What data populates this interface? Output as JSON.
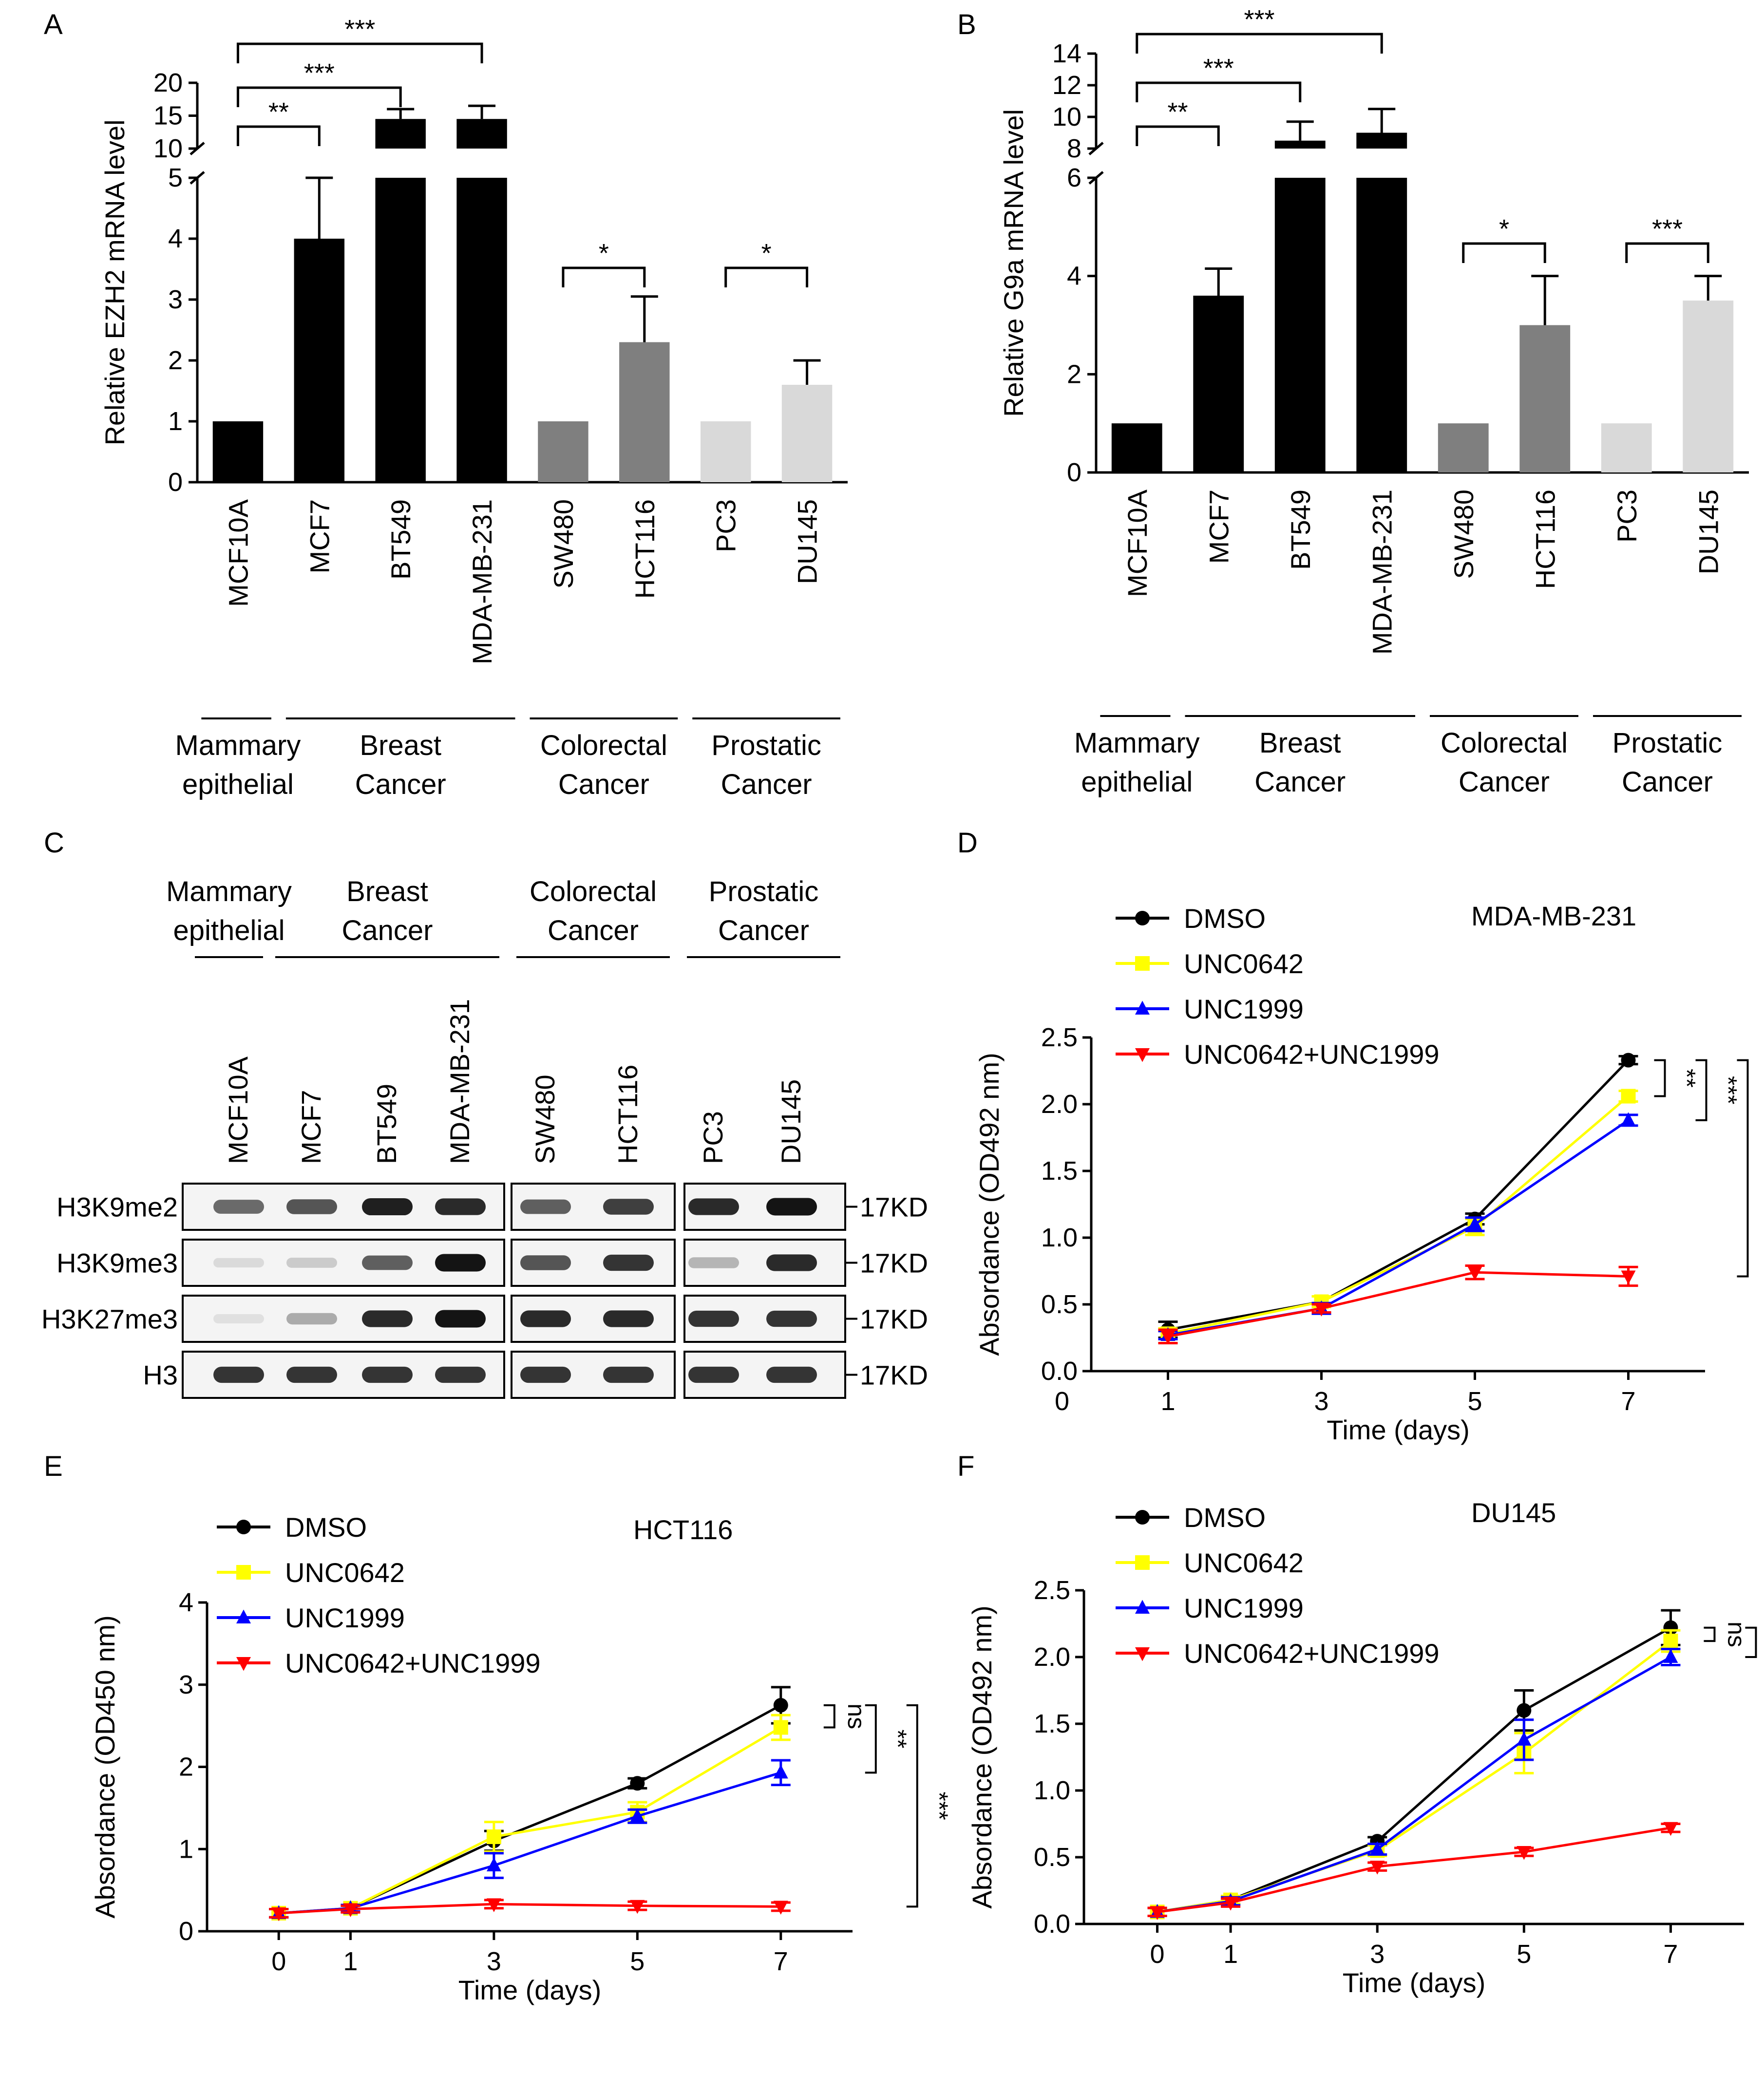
{
  "panel_letters": {
    "a": "A",
    "b": "B",
    "c": "C",
    "d": "D",
    "e": "E",
    "f": "F"
  },
  "colors": {
    "black": "#000000",
    "dark_gray": "#7f7f7f",
    "light_gray": "#d9d9d9",
    "dmso": "#000000",
    "unc0642": "#ffff00",
    "unc1999": "#0000ff",
    "combo": "#ff0000",
    "blot_bg": "#ffffff",
    "blot_band": "#1a1a1a"
  },
  "chart_data": [
    {
      "panel": "A",
      "type": "bar",
      "ylabel": "Relative EZH2 mRNA level",
      "axis_break": true,
      "lower_ticks": [
        "0",
        "1",
        "2",
        "3",
        "4",
        "5"
      ],
      "upper_ticks": [
        "10",
        "15",
        "20"
      ],
      "lower_ylim": [
        0,
        5
      ],
      "upper_ylim": [
        10,
        20
      ],
      "categories": [
        "MCF10A",
        "MCF7",
        "BT549",
        "MDA-MB-231",
        "SW480",
        "HCT116",
        "PC3",
        "DU145"
      ],
      "values": [
        1.0,
        4.0,
        14.5,
        14.5,
        1.0,
        2.3,
        1.0,
        1.6
      ],
      "errors": [
        0,
        1.0,
        1.5,
        2.0,
        0,
        0.75,
        0,
        0.4
      ],
      "bar_colors": [
        "black",
        "black",
        "black",
        "black",
        "dark_gray",
        "dark_gray",
        "light_gray",
        "light_gray"
      ],
      "groups": [
        {
          "line1": "Mammary",
          "line2": "epithelial",
          "from": 0,
          "to": 0
        },
        {
          "line1": "Breast",
          "line2": "Cancer",
          "from": 1,
          "to": 3
        },
        {
          "line1": "Colorectal",
          "line2": "Cancer",
          "from": 4,
          "to": 5
        },
        {
          "line1": "Prostatic",
          "line2": "Cancer",
          "from": 6,
          "to": 7
        }
      ],
      "significance": [
        {
          "from": 0,
          "to": 1,
          "label": "**"
        },
        {
          "from": 0,
          "to": 2,
          "label": "***"
        },
        {
          "from": 0,
          "to": 3,
          "label": "***"
        },
        {
          "from": 4,
          "to": 5,
          "label": "*"
        },
        {
          "from": 6,
          "to": 7,
          "label": "*"
        }
      ]
    },
    {
      "panel": "B",
      "type": "bar",
      "ylabel": "Relative G9a mRNA level",
      "axis_break": true,
      "lower_ticks": [
        "0",
        "2",
        "4",
        "6"
      ],
      "upper_ticks": [
        "8",
        "10",
        "12",
        "14"
      ],
      "lower_ylim": [
        0,
        6
      ],
      "upper_ylim": [
        8,
        14
      ],
      "categories": [
        "MCF10A",
        "MCF7",
        "BT549",
        "MDA-MB-231",
        "SW480",
        "HCT116",
        "PC3",
        "DU145"
      ],
      "values": [
        1.0,
        3.6,
        8.5,
        9.0,
        1.0,
        3.0,
        1.0,
        3.5
      ],
      "errors": [
        0,
        0.55,
        1.2,
        1.5,
        0,
        1.0,
        0,
        0.5
      ],
      "bar_colors": [
        "black",
        "black",
        "black",
        "black",
        "dark_gray",
        "dark_gray",
        "light_gray",
        "light_gray"
      ],
      "groups": [
        {
          "line1": "Mammary",
          "line2": "epithelial",
          "from": 0,
          "to": 0
        },
        {
          "line1": "Breast",
          "line2": "Cancer",
          "from": 1,
          "to": 3
        },
        {
          "line1": "Colorectal",
          "line2": "Cancer",
          "from": 4,
          "to": 5
        },
        {
          "line1": "Prostatic",
          "line2": "Cancer",
          "from": 6,
          "to": 7
        }
      ],
      "significance": [
        {
          "from": 0,
          "to": 1,
          "label": "**"
        },
        {
          "from": 0,
          "to": 2,
          "label": "***"
        },
        {
          "from": 0,
          "to": 3,
          "label": "***"
        },
        {
          "from": 4,
          "to": 5,
          "label": "*"
        },
        {
          "from": 6,
          "to": 7,
          "label": "***"
        }
      ]
    },
    {
      "panel": "D",
      "type": "line",
      "cell_line": "MDA-MB-231",
      "xlabel": "Time (days)",
      "ylabel": "Absordance (OD492 nm)",
      "x_ticks": [
        "0",
        "1",
        "3",
        "5",
        "7"
      ],
      "y_ticks": [
        "0.0",
        "0.5",
        "1.0",
        "1.5",
        "2.0",
        "2.5"
      ],
      "xlim": [
        0,
        8
      ],
      "ylim": [
        0,
        2.5
      ],
      "x": [
        1,
        3,
        5,
        7
      ],
      "series": [
        {
          "name": "DMSO",
          "color": "dmso",
          "marker": "circle",
          "values": [
            0.31,
            0.52,
            1.14,
            2.33
          ],
          "errors": [
            0.06,
            0.04,
            0.04,
            0.03
          ]
        },
        {
          "name": "UNC0642",
          "color": "unc0642",
          "marker": "square",
          "values": [
            0.28,
            0.52,
            1.08,
            2.06
          ],
          "errors": [
            0.04,
            0.04,
            0.06,
            0.04
          ]
        },
        {
          "name": "UNC1999",
          "color": "unc1999",
          "marker": "triangle-up",
          "values": [
            0.27,
            0.47,
            1.1,
            1.88
          ],
          "errors": [
            0.03,
            0.04,
            0.05,
            0.04
          ]
        },
        {
          "name": "UNC0642+UNC1999",
          "color": "combo",
          "marker": "triangle-down",
          "values": [
            0.26,
            0.47,
            0.74,
            0.71
          ],
          "errors": [
            0.05,
            0.03,
            0.05,
            0.07
          ]
        }
      ],
      "significance": [
        {
          "label": "**",
          "y_top": 2.33,
          "y_bottom": 2.06
        },
        {
          "label": "***",
          "y_top": 2.33,
          "y_bottom": 1.88
        },
        {
          "label": "***",
          "y_top": 2.33,
          "y_bottom": 0.71
        }
      ]
    },
    {
      "panel": "E",
      "type": "line",
      "cell_line": "HCT116",
      "xlabel": "Time (days)",
      "ylabel": "Absordance (OD450 nm)",
      "x_ticks": [
        "0",
        "1",
        "3",
        "5",
        "7"
      ],
      "y_ticks": [
        "0",
        "1",
        "2",
        "3",
        "4"
      ],
      "xlim": [
        -1,
        8
      ],
      "ylim": [
        0,
        4
      ],
      "x": [
        0,
        1,
        3,
        5,
        7
      ],
      "series": [
        {
          "name": "DMSO",
          "color": "dmso",
          "marker": "circle",
          "values": [
            0.22,
            0.28,
            1.1,
            1.8,
            2.75
          ],
          "errors": [
            0.05,
            0.04,
            0.12,
            0.06,
            0.22
          ]
        },
        {
          "name": "UNC0642",
          "color": "unc0642",
          "marker": "square",
          "values": [
            0.22,
            0.28,
            1.15,
            1.45,
            2.48
          ],
          "errors": [
            0.05,
            0.04,
            0.18,
            0.12,
            0.15
          ]
        },
        {
          "name": "UNC1999",
          "color": "unc1999",
          "marker": "triangle-up",
          "values": [
            0.22,
            0.28,
            0.8,
            1.4,
            1.93
          ],
          "errors": [
            0.05,
            0.04,
            0.15,
            0.08,
            0.15
          ]
        },
        {
          "name": "UNC0642+UNC1999",
          "color": "combo",
          "marker": "triangle-down",
          "values": [
            0.22,
            0.27,
            0.33,
            0.31,
            0.3
          ],
          "errors": [
            0.05,
            0.04,
            0.05,
            0.05,
            0.05
          ]
        }
      ],
      "significance": [
        {
          "label": "ns",
          "y_top": 2.75,
          "y_bottom": 2.48
        },
        {
          "label": "**",
          "y_top": 2.75,
          "y_bottom": 1.93
        },
        {
          "label": "***",
          "y_top": 2.75,
          "y_bottom": 0.3
        }
      ]
    },
    {
      "panel": "F",
      "type": "line",
      "cell_line": "DU145",
      "xlabel": "Time (days)",
      "ylabel": "Absordance (OD492 nm)",
      "x_ticks": [
        "0",
        "1",
        "3",
        "5",
        "7"
      ],
      "y_ticks": [
        "0.0",
        "0.5",
        "1.0",
        "1.5",
        "2.0",
        "2.5"
      ],
      "xlim": [
        -1,
        8
      ],
      "ylim": [
        0,
        2.5
      ],
      "x": [
        0,
        1,
        3,
        5,
        7
      ],
      "series": [
        {
          "name": "DMSO",
          "color": "dmso",
          "marker": "circle",
          "values": [
            0.09,
            0.18,
            0.62,
            1.6,
            2.22
          ],
          "errors": [
            0.03,
            0.03,
            0.03,
            0.15,
            0.13
          ]
        },
        {
          "name": "UNC0642",
          "color": "unc0642",
          "marker": "square",
          "values": [
            0.09,
            0.18,
            0.55,
            1.28,
            2.12
          ],
          "errors": [
            0.03,
            0.03,
            0.04,
            0.15,
            0.08
          ]
        },
        {
          "name": "UNC1999",
          "color": "unc1999",
          "marker": "triangle-up",
          "values": [
            0.09,
            0.17,
            0.56,
            1.38,
            2.0
          ],
          "errors": [
            0.03,
            0.03,
            0.04,
            0.15,
            0.06
          ]
        },
        {
          "name": "UNC0642+UNC1999",
          "color": "combo",
          "marker": "triangle-down",
          "values": [
            0.09,
            0.16,
            0.43,
            0.54,
            0.72
          ],
          "errors": [
            0.03,
            0.03,
            0.03,
            0.03,
            0.03
          ]
        }
      ],
      "significance": [
        {
          "label": "ns",
          "y_top": 2.22,
          "y_bottom": 2.12
        },
        {
          "label": "ns",
          "y_top": 2.22,
          "y_bottom": 2.0
        },
        {
          "label": "***",
          "y_top": 2.22,
          "y_bottom": 0.72
        }
      ]
    }
  ],
  "western_blot": {
    "panel": "C",
    "groups": [
      {
        "line1": "Mammary",
        "line2": "epithelial"
      },
      {
        "line1": "Breast",
        "line2": "Cancer"
      },
      {
        "line1": "Colorectal",
        "line2": "Cancer"
      },
      {
        "line1": "Prostatic",
        "line2": "Cancer"
      }
    ],
    "lanes": [
      "MCF10A",
      "MCF7",
      "BT549",
      "MDA-MB-231",
      "SW480",
      "HCT116",
      "PC3",
      "DU145"
    ],
    "rows": [
      {
        "label": "H3K9me2",
        "size": "17KD",
        "intensities": [
          0.6,
          0.7,
          0.95,
          0.9,
          0.65,
          0.8,
          0.9,
          1.0
        ]
      },
      {
        "label": "H3K9me3",
        "size": "17KD",
        "intensities": [
          0.08,
          0.15,
          0.65,
          1.0,
          0.7,
          0.85,
          0.25,
          0.9
        ]
      },
      {
        "label": "H3K27me3",
        "size": "17KD",
        "intensities": [
          0.05,
          0.3,
          0.9,
          1.0,
          0.9,
          0.9,
          0.85,
          0.85
        ]
      },
      {
        "label": "H3",
        "size": "17KD",
        "intensities": [
          0.85,
          0.85,
          0.85,
          0.85,
          0.85,
          0.85,
          0.85,
          0.85
        ]
      }
    ]
  }
}
